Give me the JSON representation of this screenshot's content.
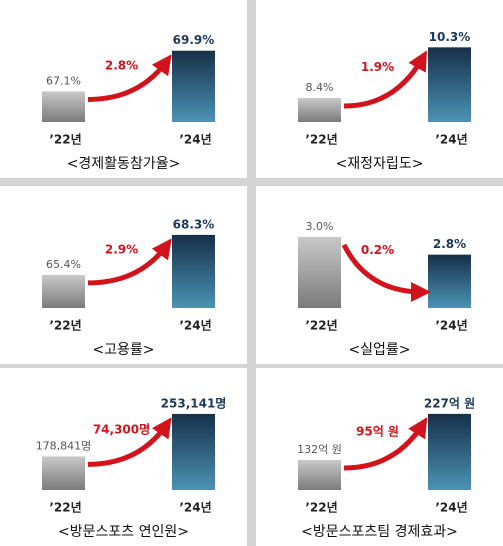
{
  "chart_data": [
    {
      "type": "bar",
      "title": "<경제활동참가율>",
      "categories": [
        "’22년",
        "’24년"
      ],
      "values": [
        67.1,
        69.9
      ],
      "value_labels": [
        "67.1%",
        "69.9%"
      ],
      "annotation": "2.8%",
      "ylim": [
        65,
        70.5
      ]
    },
    {
      "type": "bar",
      "title": "<재정자립도>",
      "categories": [
        "’22년",
        "’24년"
      ],
      "values": [
        8.4,
        10.3
      ],
      "value_labels": [
        "8.4%",
        "10.3%"
      ],
      "annotation": "1.9%",
      "ylim": [
        7.5,
        10.5
      ]
    },
    {
      "type": "bar",
      "title": "<고용률>",
      "categories": [
        "’22년",
        "’24년"
      ],
      "values": [
        65.4,
        68.3
      ],
      "value_labels": [
        "65.4%",
        "68.3%"
      ],
      "annotation": "2.9%",
      "ylim": [
        63,
        68.8
      ]
    },
    {
      "type": "bar",
      "title": "<실업률>",
      "categories": [
        "’22년",
        "’24년"
      ],
      "values": [
        3.0,
        2.8
      ],
      "value_labels": [
        "3.0%",
        "2.8%"
      ],
      "annotation": "0.2%",
      "ylim": [
        2.2,
        3.1
      ]
    },
    {
      "type": "bar",
      "title": "<방문스포츠 연인원>",
      "categories": [
        "’22년",
        "’24년"
      ],
      "values": [
        178841,
        253141
      ],
      "value_labels": [
        "178,841명",
        "253,141명"
      ],
      "annotation": "74,300명",
      "ylim": [
        120000,
        260000
      ]
    },
    {
      "type": "bar",
      "title": "<방문스포츠팀 경제효과>",
      "categories": [
        "’22년",
        "’24년"
      ],
      "values": [
        132,
        227
      ],
      "value_labels": [
        "132억 원",
        "227억 원"
      ],
      "annotation": "95억 원",
      "ylim": [
        70,
        235
      ]
    }
  ]
}
